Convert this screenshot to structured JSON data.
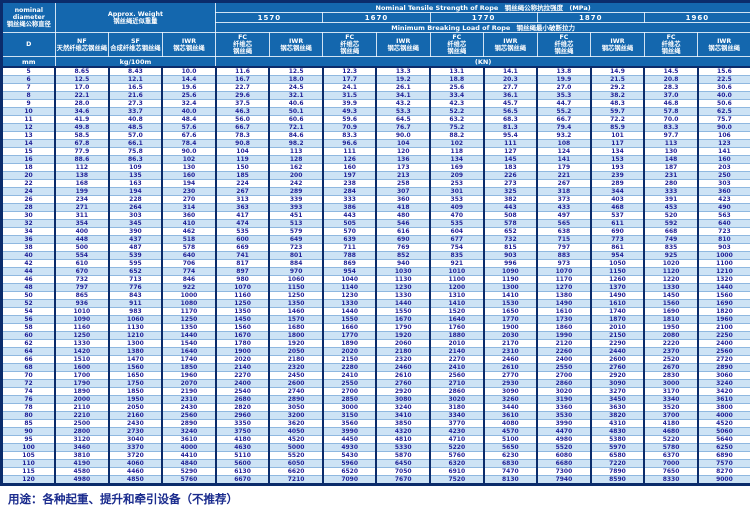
{
  "labels": {
    "nominal_diameter_en": "nominal diameter",
    "nominal_diameter_zh": "钢丝绳公称直径",
    "approx_weight_en": "Approx. Weight",
    "approx_weight_zh": "钢丝绳近似重量",
    "tensile_en": "Nominal Tensile Strength of Rope",
    "tensile_zh": "钢丝绳公称抗拉强度",
    "mpa": "(MPa)",
    "breaking_en": "Minimum Breaking Load of Rope",
    "breaking_zh": "钢丝绳最小破断拉力",
    "kn": "(KN)",
    "d": "D",
    "mm": "mm",
    "kg": "kg/100m",
    "nf_en": "NF",
    "nf_zh": "天然纤维芯钢丝绳",
    "sf_en": "SF",
    "sf_zh": "合成纤维芯钢丝绳",
    "iwr_en": "IWR",
    "iwr_zh": "钢芯钢丝绳",
    "fc_en": "FC",
    "fc_zh_line1": "纤维芯",
    "fc_zh_line2": "钢丝绳"
  },
  "strengths": [
    "1570",
    "1670",
    "1770",
    "1870",
    "1960"
  ],
  "footer": {
    "usage": "用途：各种起重、提升和牵引设备（不推荐）"
  },
  "colors": {
    "header_blue": "#1467ae",
    "border_navy": "#0b2c6b",
    "row_light_blue": "#cde3f5",
    "data_text": "#1f1f96",
    "header_text": "#ffffff"
  },
  "table": {
    "rows": [
      [
        "5",
        "8.65",
        "8.43",
        "10.0",
        "11.6",
        "12.5",
        "12.3",
        "13.3",
        "13.1",
        "14.1",
        "13.8",
        "14.9",
        "14.5",
        "15.6"
      ],
      [
        "6",
        "12.5",
        "12.1",
        "14.4",
        "16.7",
        "18.0",
        "17.7",
        "19.2",
        "18.8",
        "20.3",
        "19.9",
        "21.5",
        "20.8",
        "22.5"
      ],
      [
        "7",
        "17.0",
        "16.5",
        "19.6",
        "22.7",
        "24.5",
        "24.1",
        "26.1",
        "25.6",
        "27.7",
        "27.0",
        "29.2",
        "28.3",
        "30.6"
      ],
      [
        "8",
        "22.1",
        "21.6",
        "25.6",
        "29.6",
        "32.1",
        "31.5",
        "34.1",
        "33.4",
        "36.1",
        "35.3",
        "38.2",
        "37.0",
        "40.0"
      ],
      [
        "9",
        "28.0",
        "27.3",
        "32.4",
        "37.5",
        "40.6",
        "39.9",
        "43.2",
        "42.3",
        "45.7",
        "44.7",
        "48.3",
        "46.8",
        "50.6"
      ],
      [
        "10",
        "34.6",
        "33.7",
        "40.0",
        "46.3",
        "50.1",
        "49.3",
        "53.3",
        "52.2",
        "56.5",
        "55.2",
        "59.7",
        "57.8",
        "62.5"
      ],
      [
        "11",
        "41.9",
        "40.8",
        "48.4",
        "56.0",
        "60.6",
        "59.6",
        "64.5",
        "63.2",
        "68.3",
        "66.7",
        "72.2",
        "70.0",
        "75.7"
      ],
      [
        "12",
        "49.8",
        "48.5",
        "57.6",
        "66.7",
        "72.1",
        "70.9",
        "76.7",
        "75.2",
        "81.3",
        "79.4",
        "85.9",
        "83.3",
        "90.0"
      ],
      [
        "13",
        "58.5",
        "57.0",
        "67.6",
        "78.3",
        "84.6",
        "83.3",
        "90.0",
        "88.2",
        "95.4",
        "93.2",
        "101",
        "97.7",
        "106"
      ],
      [
        "14",
        "67.8",
        "66.1",
        "78.4",
        "90.8",
        "98.2",
        "96.6",
        "104",
        "102",
        "111",
        "108",
        "117",
        "113",
        "123"
      ],
      [
        "15",
        "77.9",
        "75.8",
        "90.0",
        "104",
        "113",
        "111",
        "120",
        "118",
        "127",
        "124",
        "134",
        "130",
        "141"
      ],
      [
        "16",
        "88.6",
        "86.3",
        "102",
        "119",
        "128",
        "126",
        "136",
        "134",
        "145",
        "141",
        "153",
        "148",
        "160"
      ],
      [
        "18",
        "112",
        "109",
        "130",
        "150",
        "162",
        "160",
        "173",
        "169",
        "183",
        "179",
        "193",
        "187",
        "203"
      ],
      [
        "20",
        "138",
        "135",
        "160",
        "185",
        "200",
        "197",
        "213",
        "209",
        "226",
        "221",
        "239",
        "231",
        "250"
      ],
      [
        "22",
        "168",
        "163",
        "194",
        "224",
        "242",
        "238",
        "258",
        "253",
        "273",
        "267",
        "289",
        "280",
        "303"
      ],
      [
        "24",
        "199",
        "194",
        "230",
        "267",
        "289",
        "284",
        "307",
        "301",
        "325",
        "318",
        "344",
        "333",
        "360"
      ],
      [
        "26",
        "234",
        "228",
        "270",
        "313",
        "339",
        "333",
        "360",
        "353",
        "382",
        "373",
        "403",
        "391",
        "423"
      ],
      [
        "28",
        "271",
        "264",
        "314",
        "363",
        "393",
        "386",
        "418",
        "409",
        "443",
        "433",
        "468",
        "453",
        "490"
      ],
      [
        "30",
        "311",
        "303",
        "360",
        "417",
        "451",
        "443",
        "480",
        "470",
        "508",
        "497",
        "537",
        "520",
        "563"
      ],
      [
        "32",
        "354",
        "345",
        "410",
        "474",
        "513",
        "505",
        "546",
        "535",
        "578",
        "565",
        "611",
        "592",
        "640"
      ],
      [
        "34",
        "400",
        "390",
        "462",
        "535",
        "579",
        "570",
        "616",
        "604",
        "652",
        "638",
        "690",
        "668",
        "723"
      ],
      [
        "36",
        "448",
        "437",
        "518",
        "600",
        "649",
        "639",
        "690",
        "677",
        "732",
        "715",
        "773",
        "749",
        "810"
      ],
      [
        "38",
        "500",
        "487",
        "578",
        "669",
        "723",
        "711",
        "769",
        "754",
        "815",
        "797",
        "861",
        "835",
        "903"
      ],
      [
        "40",
        "554",
        "539",
        "640",
        "741",
        "801",
        "788",
        "852",
        "835",
        "903",
        "883",
        "954",
        "925",
        "1000"
      ],
      [
        "42",
        "610",
        "595",
        "706",
        "817",
        "884",
        "869",
        "940",
        "921",
        "996",
        "973",
        "1050",
        "1020",
        "1100"
      ],
      [
        "44",
        "670",
        "652",
        "774",
        "897",
        "970",
        "954",
        "1030",
        "1010",
        "1090",
        "1070",
        "1150",
        "1120",
        "1210"
      ],
      [
        "46",
        "732",
        "713",
        "846",
        "980",
        "1060",
        "1040",
        "1130",
        "1100",
        "1190",
        "1170",
        "1260",
        "1220",
        "1320"
      ],
      [
        "48",
        "797",
        "776",
        "922",
        "1070",
        "1150",
        "1140",
        "1230",
        "1200",
        "1300",
        "1270",
        "1370",
        "1330",
        "1440"
      ],
      [
        "50",
        "865",
        "843",
        "1000",
        "1160",
        "1250",
        "1230",
        "1330",
        "1310",
        "1410",
        "1380",
        "1490",
        "1450",
        "1560"
      ],
      [
        "52",
        "936",
        "911",
        "1080",
        "1250",
        "1350",
        "1330",
        "1440",
        "1410",
        "1530",
        "1490",
        "1610",
        "1560",
        "1690"
      ],
      [
        "54",
        "1010",
        "983",
        "1170",
        "1350",
        "1460",
        "1440",
        "1550",
        "1520",
        "1650",
        "1610",
        "1740",
        "1690",
        "1820"
      ],
      [
        "56",
        "1090",
        "1060",
        "1250",
        "1450",
        "1570",
        "1550",
        "1670",
        "1640",
        "1770",
        "1730",
        "1870",
        "1810",
        "1960"
      ],
      [
        "58",
        "1160",
        "1130",
        "1350",
        "1560",
        "1680",
        "1660",
        "1790",
        "1760",
        "1900",
        "1860",
        "2010",
        "1950",
        "2100"
      ],
      [
        "60",
        "1250",
        "1210",
        "1440",
        "1670",
        "1800",
        "1770",
        "1920",
        "1880",
        "2030",
        "1990",
        "2150",
        "2080",
        "2250"
      ],
      [
        "62",
        "1330",
        "1300",
        "1540",
        "1780",
        "1920",
        "1890",
        "2060",
        "2010",
        "2170",
        "2120",
        "2290",
        "2220",
        "2400"
      ],
      [
        "64",
        "1420",
        "1380",
        "1640",
        "1900",
        "2050",
        "2020",
        "2180",
        "2140",
        "2310",
        "2260",
        "2440",
        "2370",
        "2560"
      ],
      [
        "66",
        "1510",
        "1470",
        "1740",
        "2020",
        "2180",
        "2150",
        "2320",
        "2270",
        "2460",
        "2400",
        "2600",
        "2520",
        "2720"
      ],
      [
        "68",
        "1600",
        "1560",
        "1850",
        "2140",
        "2320",
        "2280",
        "2460",
        "2410",
        "2610",
        "2550",
        "2760",
        "2670",
        "2890"
      ],
      [
        "70",
        "1700",
        "1650",
        "1960",
        "2270",
        "2450",
        "2410",
        "2610",
        "2560",
        "2770",
        "2700",
        "2920",
        "2830",
        "3060"
      ],
      [
        "72",
        "1790",
        "1750",
        "2070",
        "2400",
        "2600",
        "2550",
        "2760",
        "2710",
        "2930",
        "2860",
        "3090",
        "3000",
        "3240"
      ],
      [
        "74",
        "1890",
        "1850",
        "2190",
        "2540",
        "2740",
        "2700",
        "2920",
        "2860",
        "3090",
        "3020",
        "3270",
        "3170",
        "3420"
      ],
      [
        "76",
        "2000",
        "1950",
        "2310",
        "2680",
        "2890",
        "2850",
        "3080",
        "3020",
        "3260",
        "3190",
        "3450",
        "3340",
        "3610"
      ],
      [
        "78",
        "2110",
        "2050",
        "2430",
        "2820",
        "3050",
        "3000",
        "3240",
        "3180",
        "3440",
        "3360",
        "3630",
        "3520",
        "3800"
      ],
      [
        "80",
        "2210",
        "2160",
        "2560",
        "2960",
        "3200",
        "3150",
        "3410",
        "3340",
        "3610",
        "3530",
        "3820",
        "3700",
        "4000"
      ],
      [
        "85",
        "2500",
        "2430",
        "2890",
        "3350",
        "3620",
        "3560",
        "3850",
        "3770",
        "4080",
        "3990",
        "4310",
        "4180",
        "4520"
      ],
      [
        "90",
        "2800",
        "2730",
        "3240",
        "3750",
        "4050",
        "3990",
        "4320",
        "4230",
        "4570",
        "4470",
        "4830",
        "4680",
        "5060"
      ],
      [
        "95",
        "3120",
        "3040",
        "3610",
        "4180",
        "4520",
        "4450",
        "4810",
        "4710",
        "5100",
        "4980",
        "5380",
        "5220",
        "5640"
      ],
      [
        "100",
        "3460",
        "3370",
        "4000",
        "4630",
        "5000",
        "4930",
        "5330",
        "5220",
        "5650",
        "5520",
        "5970",
        "5780",
        "6250"
      ],
      [
        "105",
        "3810",
        "3720",
        "4410",
        "5110",
        "5520",
        "5430",
        "5870",
        "5760",
        "6230",
        "6080",
        "6580",
        "6370",
        "6890"
      ],
      [
        "110",
        "4190",
        "4060",
        "4840",
        "5600",
        "6050",
        "5960",
        "6450",
        "6320",
        "6830",
        "6680",
        "7220",
        "7000",
        "7570"
      ],
      [
        "115",
        "4580",
        "4460",
        "5290",
        "6130",
        "6620",
        "6520",
        "7050",
        "6910",
        "7470",
        "7300",
        "7890",
        "7650",
        "8270"
      ],
      [
        "120",
        "4980",
        "4850",
        "5760",
        "6670",
        "7210",
        "7090",
        "7670",
        "7520",
        "8130",
        "7940",
        "8590",
        "8330",
        "9000"
      ]
    ]
  }
}
